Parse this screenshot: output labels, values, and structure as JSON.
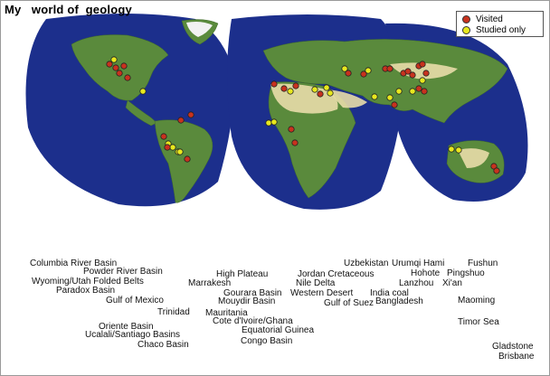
{
  "title": "My   world of  geology",
  "legend": {
    "visited": {
      "label": "Visited",
      "color": "#c8321e"
    },
    "studied": {
      "label": "Studied only",
      "color": "#e8e81e"
    }
  },
  "colors": {
    "ocean": "#1c2f8c",
    "land": "#5a8a3c",
    "desert": "#e8dca8",
    "ice": "#f2f2f2"
  },
  "labels": [
    "Columbia River Basin",
    "Powder River Basin",
    "Wyoming/Utah Folded Belts",
    "Paradox Basin",
    "Gulf of Mexico",
    "Trinidad",
    "Oriente Basin",
    "Ucalali/Santiago Basins",
    "Chaco Basin",
    "High Plateau",
    "Marrakesh",
    "Gourara Basin",
    "Mouydir Basin",
    "Mauritania",
    "Cote d'Ivoire/Ghana",
    "Equatorial Guinea",
    "Congo Basin",
    "Jordan Cretaceous",
    "Nile Delta",
    "Western Desert",
    "Gulf of Suez",
    "Uzbekistan",
    "India coal",
    "Bangladesh",
    "Urumqi Hami",
    "Hohote",
    "Lanzhou",
    "Pingshuo",
    "Xi'an",
    "Fushun",
    "Maoming",
    "Timor Sea",
    "Gladstone",
    "Brisbane"
  ]
}
